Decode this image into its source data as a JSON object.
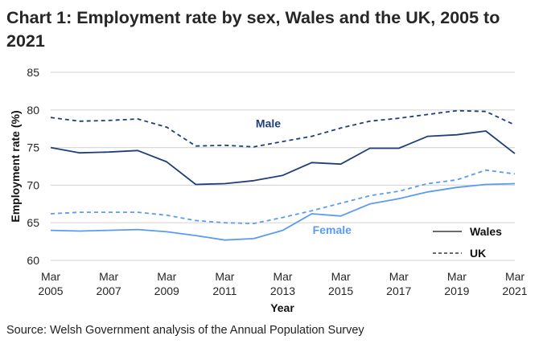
{
  "chart_data": {
    "type": "line",
    "title": "Chart 1: Employment rate by sex, Wales and the UK, 2005 to 2021",
    "xlabel": "Year",
    "ylabel": "Employment rate (%)",
    "ylim": [
      60,
      85
    ],
    "yticks": [
      60,
      65,
      70,
      75,
      80,
      85
    ],
    "grid": true,
    "x": [
      2005,
      2006,
      2007,
      2008,
      2009,
      2010,
      2011,
      2012,
      2013,
      2014,
      2015,
      2016,
      2017,
      2018,
      2019,
      2020,
      2021
    ],
    "xticks": [
      {
        "year": 2005,
        "line1": "Mar",
        "line2": "2005"
      },
      {
        "year": 2007,
        "line1": "Mar",
        "line2": "2007"
      },
      {
        "year": 2009,
        "line1": "Mar",
        "line2": "2009"
      },
      {
        "year": 2011,
        "line1": "Mar",
        "line2": "2011"
      },
      {
        "year": 2013,
        "line1": "Mar",
        "line2": "2013"
      },
      {
        "year": 2015,
        "line1": "Mar",
        "line2": "2015"
      },
      {
        "year": 2017,
        "line1": "Mar",
        "line2": "2017"
      },
      {
        "year": 2019,
        "line1": "Mar",
        "line2": "2019"
      },
      {
        "year": 2021,
        "line1": "Mar",
        "line2": "2021"
      }
    ],
    "series": [
      {
        "name": "Male Wales",
        "sex": "Male",
        "area": "Wales",
        "color": "#1f3f7a",
        "dashed": false,
        "values": [
          75.0,
          74.3,
          74.4,
          74.6,
          73.1,
          70.1,
          70.2,
          70.6,
          71.3,
          73.0,
          72.8,
          74.9,
          74.9,
          76.5,
          76.7,
          77.2,
          74.2
        ]
      },
      {
        "name": "Male UK",
        "sex": "Male",
        "area": "UK",
        "color": "#1f3f7a",
        "dashed": true,
        "values": [
          79.0,
          78.5,
          78.6,
          78.8,
          77.7,
          75.2,
          75.3,
          75.1,
          75.8,
          76.5,
          77.6,
          78.5,
          78.9,
          79.4,
          79.9,
          79.8,
          78.0
        ]
      },
      {
        "name": "Female Wales",
        "sex": "Female",
        "area": "Wales",
        "color": "#5b9bf0",
        "dashed": false,
        "values": [
          64.0,
          63.9,
          64.0,
          64.1,
          63.8,
          63.3,
          62.7,
          62.9,
          64.0,
          66.2,
          65.9,
          67.5,
          68.2,
          69.1,
          69.7,
          70.1,
          70.2
        ]
      },
      {
        "name": "Female UK",
        "sex": "Female",
        "area": "UK",
        "color": "#5b9bf0",
        "dashed": true,
        "values": [
          66.2,
          66.4,
          66.4,
          66.4,
          66.0,
          65.3,
          65.0,
          64.9,
          65.7,
          66.6,
          67.6,
          68.6,
          69.2,
          70.2,
          70.7,
          72.0,
          71.5
        ]
      }
    ],
    "annotations": [
      {
        "text": "Male",
        "color": "#1f3f7a",
        "x": 2012.5,
        "y": 77.7
      },
      {
        "text": "Female",
        "color": "#5b9bf0",
        "x": 2014.7,
        "y": 63.5
      }
    ],
    "legend": {
      "placement": "bottom-right",
      "entries": [
        {
          "label": "Wales",
          "dashed": false
        },
        {
          "label": "UK",
          "dashed": true
        }
      ]
    },
    "source": "Source: Welsh Government analysis of the Annual Population Survey"
  }
}
